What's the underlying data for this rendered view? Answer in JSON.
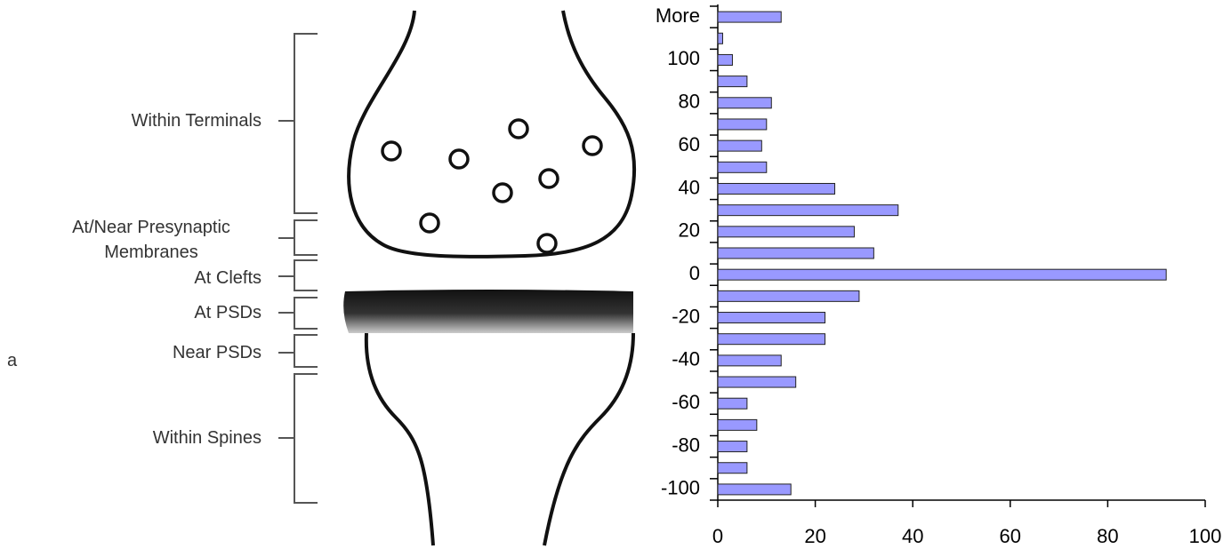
{
  "diagram": {
    "panel_label": "a",
    "regions": [
      "Within Terminals",
      "At/Near Presynaptic Membranes",
      "At Clefts",
      "At PSDs",
      "Near PSDs",
      "Within Spines"
    ]
  },
  "chart_data": {
    "type": "barh",
    "categories": [
      "-100",
      null,
      "-80",
      null,
      "-60",
      null,
      "-40",
      null,
      "-20",
      null,
      "0",
      null,
      "20",
      null,
      "40",
      null,
      "60",
      null,
      "80",
      null,
      "100",
      null,
      "More"
    ],
    "values": [
      15,
      6,
      6,
      8,
      6,
      16,
      13,
      22,
      22,
      29,
      92,
      32,
      28,
      37,
      24,
      10,
      9,
      10,
      11,
      6,
      3,
      1,
      13
    ],
    "color": "#9999ff",
    "xlim": [
      0,
      100
    ],
    "xticks": [
      0,
      20,
      40,
      60,
      80,
      100
    ]
  }
}
